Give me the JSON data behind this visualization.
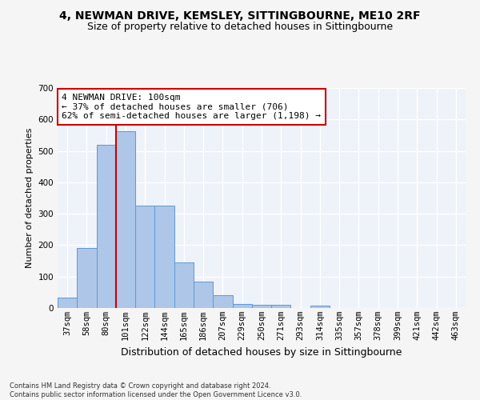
{
  "title1": "4, NEWMAN DRIVE, KEMSLEY, SITTINGBOURNE, ME10 2RF",
  "title2": "Size of property relative to detached houses in Sittingbourne",
  "xlabel": "Distribution of detached houses by size in Sittingbourne",
  "ylabel": "Number of detached properties",
  "categories": [
    "37sqm",
    "58sqm",
    "80sqm",
    "101sqm",
    "122sqm",
    "144sqm",
    "165sqm",
    "186sqm",
    "207sqm",
    "229sqm",
    "250sqm",
    "271sqm",
    "293sqm",
    "314sqm",
    "335sqm",
    "357sqm",
    "378sqm",
    "399sqm",
    "421sqm",
    "442sqm",
    "463sqm"
  ],
  "values": [
    33,
    190,
    520,
    563,
    327,
    327,
    145,
    85,
    42,
    13,
    10,
    10,
    0,
    7,
    0,
    0,
    0,
    0,
    0,
    0,
    0
  ],
  "bar_color": "#aec6e8",
  "bar_edge_color": "#5b9bd5",
  "annotation_text": "4 NEWMAN DRIVE: 100sqm\n← 37% of detached houses are smaller (706)\n62% of semi-detached houses are larger (1,198) →",
  "annotation_box_color": "#ffffff",
  "annotation_box_edge_color": "#cc0000",
  "vline_color": "#cc0000",
  "ylim": [
    0,
    700
  ],
  "yticks": [
    0,
    100,
    200,
    300,
    400,
    500,
    600,
    700
  ],
  "bg_color": "#eef2f9",
  "grid_color": "#ffffff",
  "footer_text": "Contains HM Land Registry data © Crown copyright and database right 2024.\nContains public sector information licensed under the Open Government Licence v3.0.",
  "title1_fontsize": 10,
  "title2_fontsize": 9,
  "xlabel_fontsize": 9,
  "ylabel_fontsize": 8,
  "tick_fontsize": 7.5,
  "annotation_fontsize": 8,
  "footer_fontsize": 6
}
